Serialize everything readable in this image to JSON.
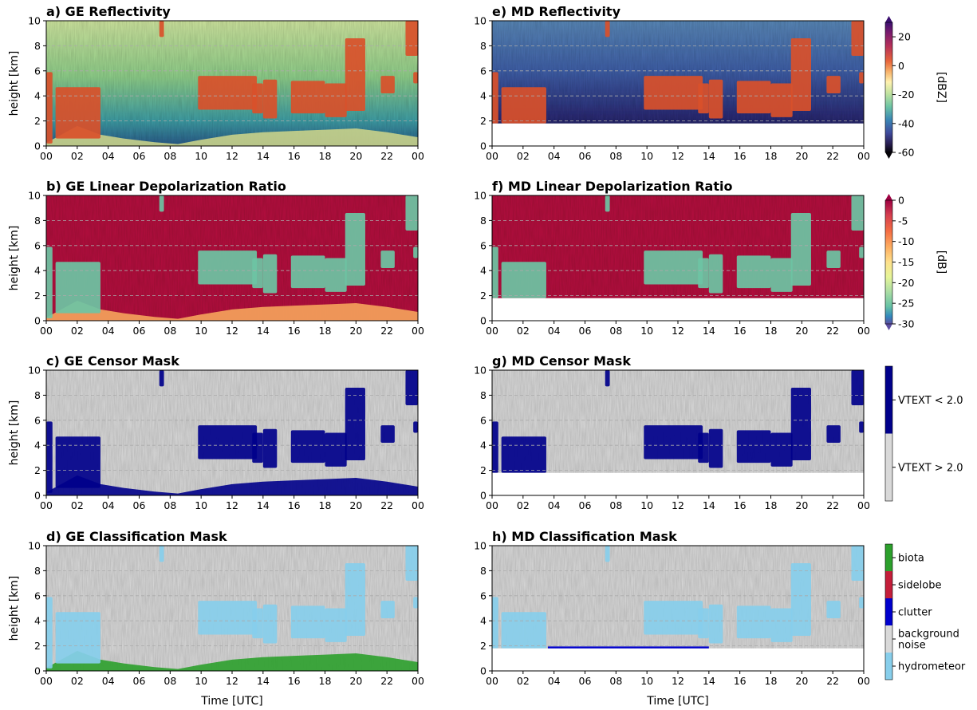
{
  "figure": {
    "xlabel": "Time [UTC]",
    "ylabel": "height [km]",
    "xticks": [
      "00",
      "02",
      "04",
      "06",
      "08",
      "10",
      "12",
      "14",
      "16",
      "18",
      "20",
      "22",
      "00"
    ],
    "yticks": [
      "0",
      "2",
      "4",
      "6",
      "8",
      "10"
    ]
  },
  "colorbars": {
    "reflectivity": {
      "label": "[dBZ]",
      "range": [
        -60,
        30
      ],
      "ticks": [
        "20",
        "0",
        "-20",
        "-40",
        "-60"
      ],
      "tick_values": [
        20,
        0,
        -20,
        -40,
        -60
      ],
      "colormap": "magma-like"
    },
    "ldr": {
      "label": "[dB]",
      "range": [
        -30,
        0
      ],
      "ticks": [
        "0",
        "-5",
        "-10",
        "-15",
        "-20",
        "-25",
        "-30"
      ],
      "tick_values": [
        0,
        -5,
        -10,
        -15,
        -20,
        -25,
        -30
      ],
      "colormap": "Spectral"
    },
    "censor": {
      "labels": [
        "VTEXT < 2.0",
        "VTEXT > 2.0"
      ],
      "colors": [
        "#00008b",
        "#d9d9d9"
      ]
    },
    "classification": {
      "labels": [
        "biota",
        "sidelobe",
        "clutter",
        "background\nnoise",
        "hydrometeor"
      ],
      "colors": [
        "#2ca02c",
        "#c41e3a",
        "#0000cd",
        "#d9d9d9",
        "#87ceeb"
      ]
    }
  },
  "colors": {
    "reflectivity_bg": "#8fcf8a",
    "reflectivity_echo": "#d9502a",
    "ldr_bg": "#b5123f",
    "ldr_echo": "#6cc4a4",
    "censor_bg": "#d9d9d9",
    "censor_echo": "#00008b",
    "class_bg": "#d9d9d9",
    "class_echo": "#87ceeb",
    "biota": "#2ca02c",
    "clutter": "#0000cd"
  },
  "chart_data": [
    {
      "id": "a",
      "title": "a) GE Reflectivity",
      "type": "heatmap",
      "field": "reflectivity",
      "site": "GE",
      "xlabel": "",
      "ylabel": "height [km]",
      "xlim": [
        0,
        24
      ],
      "ylim": [
        0,
        10
      ],
      "unit": "dBZ"
    },
    {
      "id": "b",
      "title": "b) GE Linear Depolarization Ratio",
      "type": "heatmap",
      "field": "ldr",
      "site": "GE",
      "xlabel": "",
      "ylabel": "height [km]",
      "xlim": [
        0,
        24
      ],
      "ylim": [
        0,
        10
      ],
      "unit": "dB"
    },
    {
      "id": "c",
      "title": "c) GE Censor Mask",
      "type": "heatmap",
      "field": "censor",
      "site": "GE",
      "xlabel": "",
      "ylabel": "height [km]",
      "xlim": [
        0,
        24
      ],
      "ylim": [
        0,
        10
      ]
    },
    {
      "id": "d",
      "title": "d) GE Classification Mask",
      "type": "heatmap",
      "field": "classification",
      "site": "GE",
      "xlabel": "Time [UTC]",
      "ylabel": "height [km]",
      "xlim": [
        0,
        24
      ],
      "ylim": [
        0,
        10
      ]
    },
    {
      "id": "e",
      "title": "e) MD Reflectivity",
      "type": "heatmap",
      "field": "reflectivity",
      "site": "MD",
      "xlabel": "",
      "ylabel": "",
      "xlim": [
        0,
        24
      ],
      "ylim": [
        0,
        10
      ],
      "unit": "dBZ",
      "no_data_below_km": 1.8
    },
    {
      "id": "f",
      "title": "f) MD Linear Depolarization Ratio",
      "type": "heatmap",
      "field": "ldr",
      "site": "MD",
      "xlabel": "",
      "ylabel": "",
      "xlim": [
        0,
        24
      ],
      "ylim": [
        0,
        10
      ],
      "unit": "dB",
      "no_data_below_km": 1.8
    },
    {
      "id": "g",
      "title": "g) MD Censor Mask",
      "type": "heatmap",
      "field": "censor",
      "site": "MD",
      "xlabel": "",
      "ylabel": "",
      "xlim": [
        0,
        24
      ],
      "ylim": [
        0,
        10
      ],
      "no_data_below_km": 1.8
    },
    {
      "id": "h",
      "title": "h) MD Classification Mask",
      "type": "heatmap",
      "field": "classification",
      "site": "MD",
      "xlabel": "Time [UTC]",
      "ylabel": "",
      "xlim": [
        0,
        24
      ],
      "ylim": [
        0,
        10
      ],
      "no_data_below_km": 1.8
    }
  ],
  "cloud_events": [
    {
      "t0": 0.0,
      "t1": 0.4,
      "bottom": 0.2,
      "top": 5.9
    },
    {
      "t0": 0.6,
      "t1": 3.5,
      "bottom": 0.6,
      "top": 4.7
    },
    {
      "t0": 9.8,
      "t1": 13.6,
      "bottom": 2.9,
      "top": 5.6
    },
    {
      "t0": 13.3,
      "t1": 14.0,
      "bottom": 2.6,
      "top": 5.0
    },
    {
      "t0": 14.0,
      "t1": 14.9,
      "bottom": 2.2,
      "top": 5.3
    },
    {
      "t0": 15.8,
      "t1": 18.0,
      "bottom": 2.6,
      "top": 5.2
    },
    {
      "t0": 18.0,
      "t1": 19.4,
      "bottom": 2.3,
      "top": 5.0
    },
    {
      "t0": 19.3,
      "t1": 20.6,
      "bottom": 2.8,
      "top": 8.6
    },
    {
      "t0": 21.6,
      "t1": 22.5,
      "bottom": 4.2,
      "top": 5.6
    },
    {
      "t0": 23.2,
      "t1": 24.0,
      "bottom": 7.2,
      "top": 10.0
    },
    {
      "t0": 23.7,
      "t1": 24.0,
      "bottom": 5.0,
      "top": 5.9
    },
    {
      "t0": 7.3,
      "t1": 7.6,
      "bottom": 8.7,
      "top": 10.0
    }
  ]
}
